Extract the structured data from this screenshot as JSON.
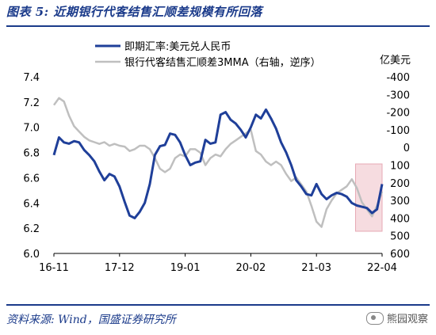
{
  "header": {
    "title": "图表 5:  近期银行代客结售汇顺差规模有所回落"
  },
  "footer": {
    "source": "资料来源:  Wind，国盛证券研究所",
    "watermark": "熊园观察"
  },
  "chart_data": {
    "type": "line",
    "legend": [
      "即期汇率:美元兑人民币",
      "银行代客结售汇顺差3MMA（右轴，逆序）"
    ],
    "right_axis_unit": "亿美元",
    "x_ticks": [
      "16-11",
      "17-12",
      "19-01",
      "20-02",
      "21-03",
      "22-04"
    ],
    "left_axis": {
      "min": 6.0,
      "max": 7.4,
      "ticks": [
        "7.4",
        "7.2",
        "7.0",
        "6.8",
        "6.6",
        "6.4",
        "6.2",
        "6.0"
      ]
    },
    "right_axis": {
      "min": -400,
      "max": 600,
      "reversed": true,
      "ticks": [
        "-400",
        "-300",
        "-200",
        "-100",
        "0",
        "100",
        "200",
        "300",
        "400",
        "500",
        "600"
      ]
    },
    "colors": {
      "fx": "#1f3f99",
      "surplus": "#bfbfbf",
      "highlight": "#f6dce0",
      "highlight_border": "#e7a9b4"
    },
    "highlight_range": [
      "2021-12",
      "2022-04"
    ],
    "series": [
      {
        "name": "即期汇率:美元兑人民币",
        "axis": "left",
        "color": "#1f3f99",
        "points": [
          [
            "2016-11",
            6.78
          ],
          [
            "2016-12",
            6.92
          ],
          [
            "2017-01",
            6.88
          ],
          [
            "2017-02",
            6.87
          ],
          [
            "2017-03",
            6.89
          ],
          [
            "2017-04",
            6.88
          ],
          [
            "2017-05",
            6.82
          ],
          [
            "2017-06",
            6.78
          ],
          [
            "2017-07",
            6.73
          ],
          [
            "2017-08",
            6.65
          ],
          [
            "2017-09",
            6.58
          ],
          [
            "2017-10",
            6.63
          ],
          [
            "2017-11",
            6.61
          ],
          [
            "2017-12",
            6.53
          ],
          [
            "2018-01",
            6.41
          ],
          [
            "2018-02",
            6.3
          ],
          [
            "2018-03",
            6.28
          ],
          [
            "2018-04",
            6.33
          ],
          [
            "2018-05",
            6.4
          ],
          [
            "2018-06",
            6.55
          ],
          [
            "2018-07",
            6.78
          ],
          [
            "2018-08",
            6.85
          ],
          [
            "2018-09",
            6.86
          ],
          [
            "2018-10",
            6.95
          ],
          [
            "2018-11",
            6.94
          ],
          [
            "2018-12",
            6.88
          ],
          [
            "2019-01",
            6.78
          ],
          [
            "2019-02",
            6.7
          ],
          [
            "2019-03",
            6.72
          ],
          [
            "2019-04",
            6.73
          ],
          [
            "2019-05",
            6.9
          ],
          [
            "2019-06",
            6.87
          ],
          [
            "2019-07",
            6.88
          ],
          [
            "2019-08",
            7.1
          ],
          [
            "2019-09",
            7.12
          ],
          [
            "2019-10",
            7.06
          ],
          [
            "2019-11",
            7.03
          ],
          [
            "2019-12",
            6.98
          ],
          [
            "2020-01",
            6.92
          ],
          [
            "2020-02",
            7.0
          ],
          [
            "2020-03",
            7.1
          ],
          [
            "2020-04",
            7.07
          ],
          [
            "2020-05",
            7.14
          ],
          [
            "2020-06",
            7.07
          ],
          [
            "2020-07",
            6.99
          ],
          [
            "2020-08",
            6.88
          ],
          [
            "2020-09",
            6.8
          ],
          [
            "2020-10",
            6.7
          ],
          [
            "2020-11",
            6.58
          ],
          [
            "2020-12",
            6.53
          ],
          [
            "2021-01",
            6.47
          ],
          [
            "2021-02",
            6.46
          ],
          [
            "2021-03",
            6.55
          ],
          [
            "2021-04",
            6.47
          ],
          [
            "2021-05",
            6.43
          ],
          [
            "2021-06",
            6.46
          ],
          [
            "2021-07",
            6.48
          ],
          [
            "2021-08",
            6.47
          ],
          [
            "2021-09",
            6.45
          ],
          [
            "2021-10",
            6.4
          ],
          [
            "2021-11",
            6.38
          ],
          [
            "2021-12",
            6.37
          ],
          [
            "2022-01",
            6.36
          ],
          [
            "2022-02",
            6.32
          ],
          [
            "2022-03",
            6.35
          ],
          [
            "2022-04",
            6.55
          ]
        ]
      },
      {
        "name": "银行代客结售汇顺差3MMA（右轴，逆序）",
        "axis": "right",
        "color": "#bfbfbf",
        "points": [
          [
            "2016-11",
            -240
          ],
          [
            "2016-12",
            -280
          ],
          [
            "2017-01",
            -260
          ],
          [
            "2017-02",
            -180
          ],
          [
            "2017-03",
            -120
          ],
          [
            "2017-04",
            -90
          ],
          [
            "2017-05",
            -60
          ],
          [
            "2017-06",
            -40
          ],
          [
            "2017-07",
            -30
          ],
          [
            "2017-08",
            -20
          ],
          [
            "2017-09",
            -30
          ],
          [
            "2017-10",
            -10
          ],
          [
            "2017-11",
            -20
          ],
          [
            "2017-12",
            -10
          ],
          [
            "2018-01",
            -5
          ],
          [
            "2018-02",
            20
          ],
          [
            "2018-03",
            10
          ],
          [
            "2018-04",
            -10
          ],
          [
            "2018-05",
            -10
          ],
          [
            "2018-06",
            10
          ],
          [
            "2018-07",
            60
          ],
          [
            "2018-08",
            120
          ],
          [
            "2018-09",
            140
          ],
          [
            "2018-10",
            120
          ],
          [
            "2018-11",
            60
          ],
          [
            "2018-12",
            40
          ],
          [
            "2019-01",
            50
          ],
          [
            "2019-02",
            10
          ],
          [
            "2019-03",
            10
          ],
          [
            "2019-04",
            30
          ],
          [
            "2019-05",
            100
          ],
          [
            "2019-06",
            60
          ],
          [
            "2019-07",
            40
          ],
          [
            "2019-08",
            50
          ],
          [
            "2019-09",
            10
          ],
          [
            "2019-10",
            -20
          ],
          [
            "2019-11",
            -40
          ],
          [
            "2019-12",
            -60
          ],
          [
            "2020-01",
            -80
          ],
          [
            "2020-02",
            -100
          ],
          [
            "2020-03",
            20
          ],
          [
            "2020-04",
            40
          ],
          [
            "2020-05",
            80
          ],
          [
            "2020-06",
            100
          ],
          [
            "2020-07",
            80
          ],
          [
            "2020-08",
            100
          ],
          [
            "2020-09",
            150
          ],
          [
            "2020-10",
            190
          ],
          [
            "2020-11",
            170
          ],
          [
            "2020-12",
            210
          ],
          [
            "2021-01",
            250
          ],
          [
            "2021-02",
            330
          ],
          [
            "2021-03",
            420
          ],
          [
            "2021-04",
            450
          ],
          [
            "2021-05",
            350
          ],
          [
            "2021-06",
            300
          ],
          [
            "2021-07",
            260
          ],
          [
            "2021-08",
            240
          ],
          [
            "2021-09",
            220
          ],
          [
            "2021-10",
            180
          ],
          [
            "2021-11",
            230
          ],
          [
            "2021-12",
            310
          ],
          [
            "2022-01",
            350
          ],
          [
            "2022-02",
            390
          ],
          [
            "2022-03",
            330
          ],
          [
            "2022-04",
            250
          ]
        ]
      }
    ]
  }
}
